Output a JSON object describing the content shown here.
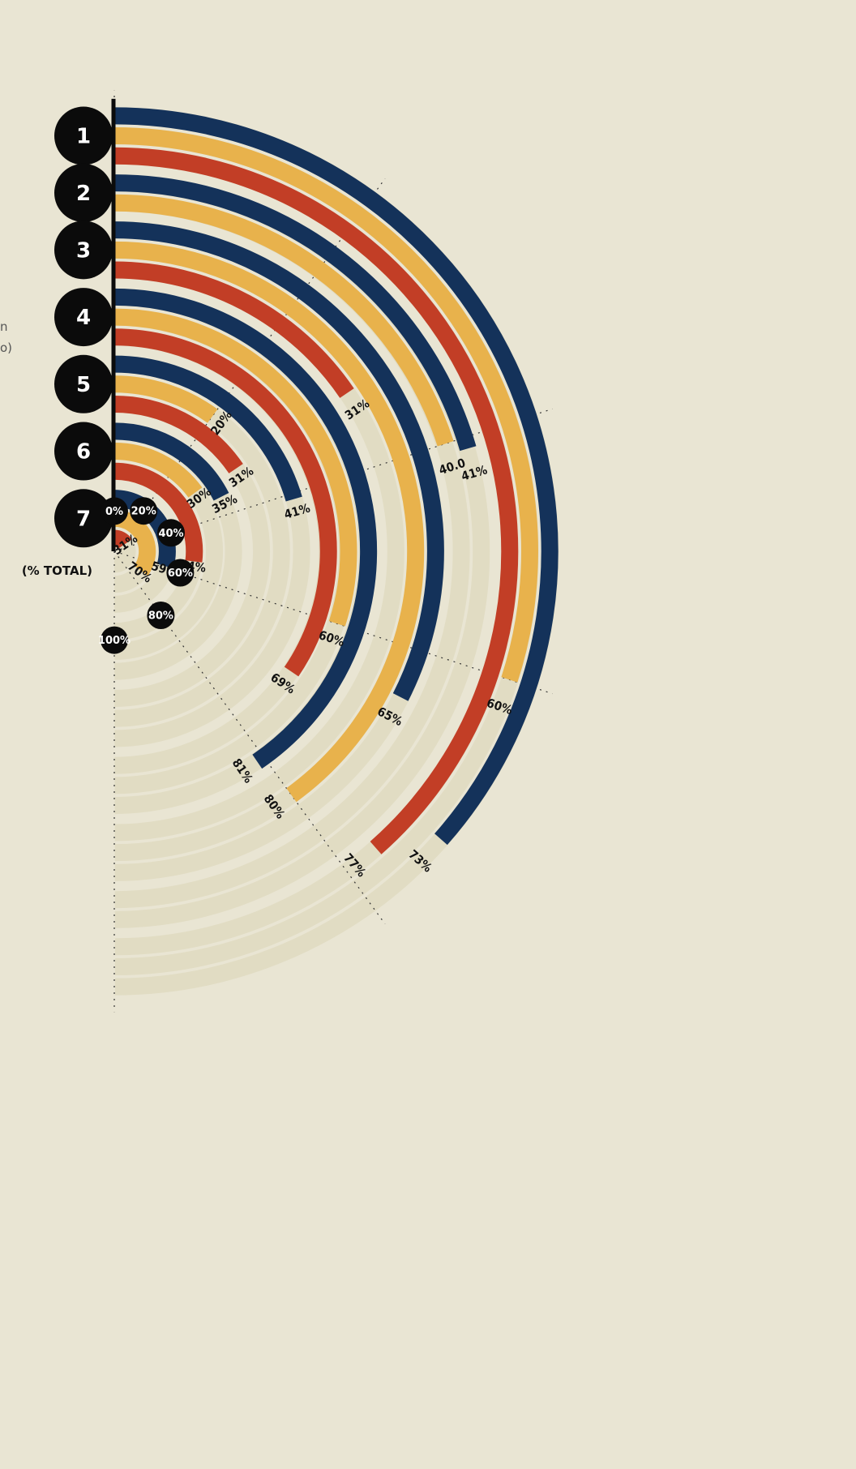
{
  "colors": {
    "background": "#e9e5d3",
    "track": "#e1dcc3",
    "navy": "#14325a",
    "gold": "#e8b24c",
    "red": "#c23e26",
    "marker": "#0b0b0b"
  },
  "side_note": [
    "n",
    "o)"
  ],
  "axis_caption": "(% TOTAL)",
  "chart_data": {
    "type": "radial_bar",
    "unit": "% TOTAL",
    "sweep_max": 100,
    "scale_ticks": [
      {
        "value": 0,
        "label": "0%"
      },
      {
        "value": 20,
        "label": "20%"
      },
      {
        "value": 40,
        "label": "40%"
      },
      {
        "value": 60,
        "label": "60%"
      },
      {
        "value": 80,
        "label": "80%"
      },
      {
        "value": 100,
        "label": "100%"
      }
    ],
    "groups": [
      {
        "label": "1",
        "bars": [
          {
            "color": "navy",
            "value": 73,
            "label": "73%"
          },
          {
            "color": "gold",
            "value": 60,
            "label": "60%"
          },
          {
            "color": "red",
            "value": 77,
            "label": "77%"
          }
        ]
      },
      {
        "label": "2",
        "bars": [
          {
            "color": "navy",
            "value": 41,
            "label": "41%"
          },
          {
            "color": "gold",
            "value": 40,
            "label": "40.0"
          }
        ]
      },
      {
        "label": "3",
        "bars": [
          {
            "color": "navy",
            "value": 65,
            "label": "65%"
          },
          {
            "color": "gold",
            "value": 80,
            "label": "80%"
          },
          {
            "color": "red",
            "value": 31,
            "label": "31%"
          }
        ]
      },
      {
        "label": "4",
        "bars": [
          {
            "color": "navy",
            "value": 81,
            "label": "81%"
          },
          {
            "color": "gold",
            "value": 60,
            "label": "60%"
          },
          {
            "color": "red",
            "value": 69,
            "label": "69%"
          }
        ]
      },
      {
        "label": "5",
        "bars": [
          {
            "color": "navy",
            "value": 41,
            "label": "41%"
          },
          {
            "color": "gold",
            "value": 20,
            "label": "20%"
          },
          {
            "color": "red",
            "value": 31,
            "label": "31%"
          }
        ]
      },
      {
        "label": "6",
        "bars": [
          {
            "color": "navy",
            "value": 35,
            "label": "35%"
          },
          {
            "color": "gold",
            "value": 30,
            "label": "30%"
          },
          {
            "color": "red",
            "value": 54,
            "label": "54%"
          }
        ]
      },
      {
        "label": "7",
        "bars": [
          {
            "color": "navy",
            "value": 59,
            "label": "59%"
          },
          {
            "color": "gold",
            "value": 70,
            "label": "70%"
          },
          {
            "color": "red",
            "value": 31,
            "label": "31%"
          }
        ]
      }
    ]
  }
}
